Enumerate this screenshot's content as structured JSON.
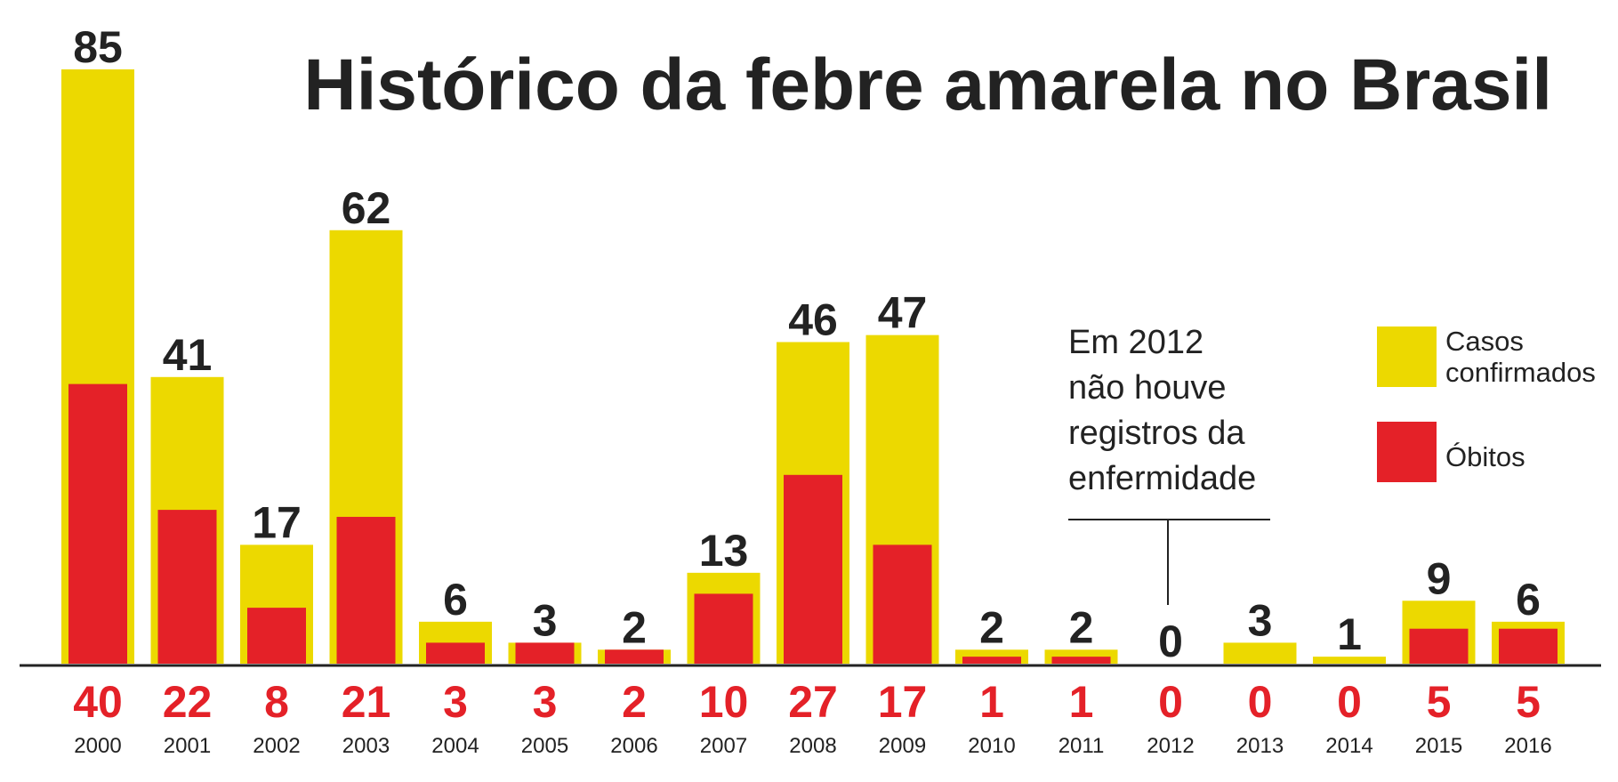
{
  "chart_data": {
    "type": "bar",
    "title": "Histórico da febre amarela no Brasil",
    "categories": [
      "2000",
      "2001",
      "2002",
      "2003",
      "2004",
      "2005",
      "2006",
      "2007",
      "2008",
      "2009",
      "2010",
      "2011",
      "2012",
      "2013",
      "2014",
      "2015",
      "2016"
    ],
    "series": [
      {
        "name": "Casos confirmados",
        "color": "#ecd900",
        "values": [
          85,
          41,
          17,
          62,
          6,
          3,
          2,
          13,
          46,
          47,
          2,
          2,
          0,
          3,
          1,
          9,
          6
        ]
      },
      {
        "name": "Óbitos",
        "color": "#e42128",
        "values": [
          40,
          22,
          8,
          21,
          3,
          3,
          2,
          10,
          27,
          17,
          1,
          1,
          0,
          0,
          0,
          5,
          5
        ]
      }
    ],
    "ylim": [
      0,
      85
    ],
    "grid": false,
    "legend_placement": "right",
    "legend": {
      "cases_line1": "Casos",
      "cases_line2": "confirmados",
      "deaths": "Óbitos"
    },
    "annotation": {
      "category": "2012",
      "lines": [
        "Em 2012",
        "não houve",
        "registros da",
        "enfermidade"
      ]
    }
  }
}
